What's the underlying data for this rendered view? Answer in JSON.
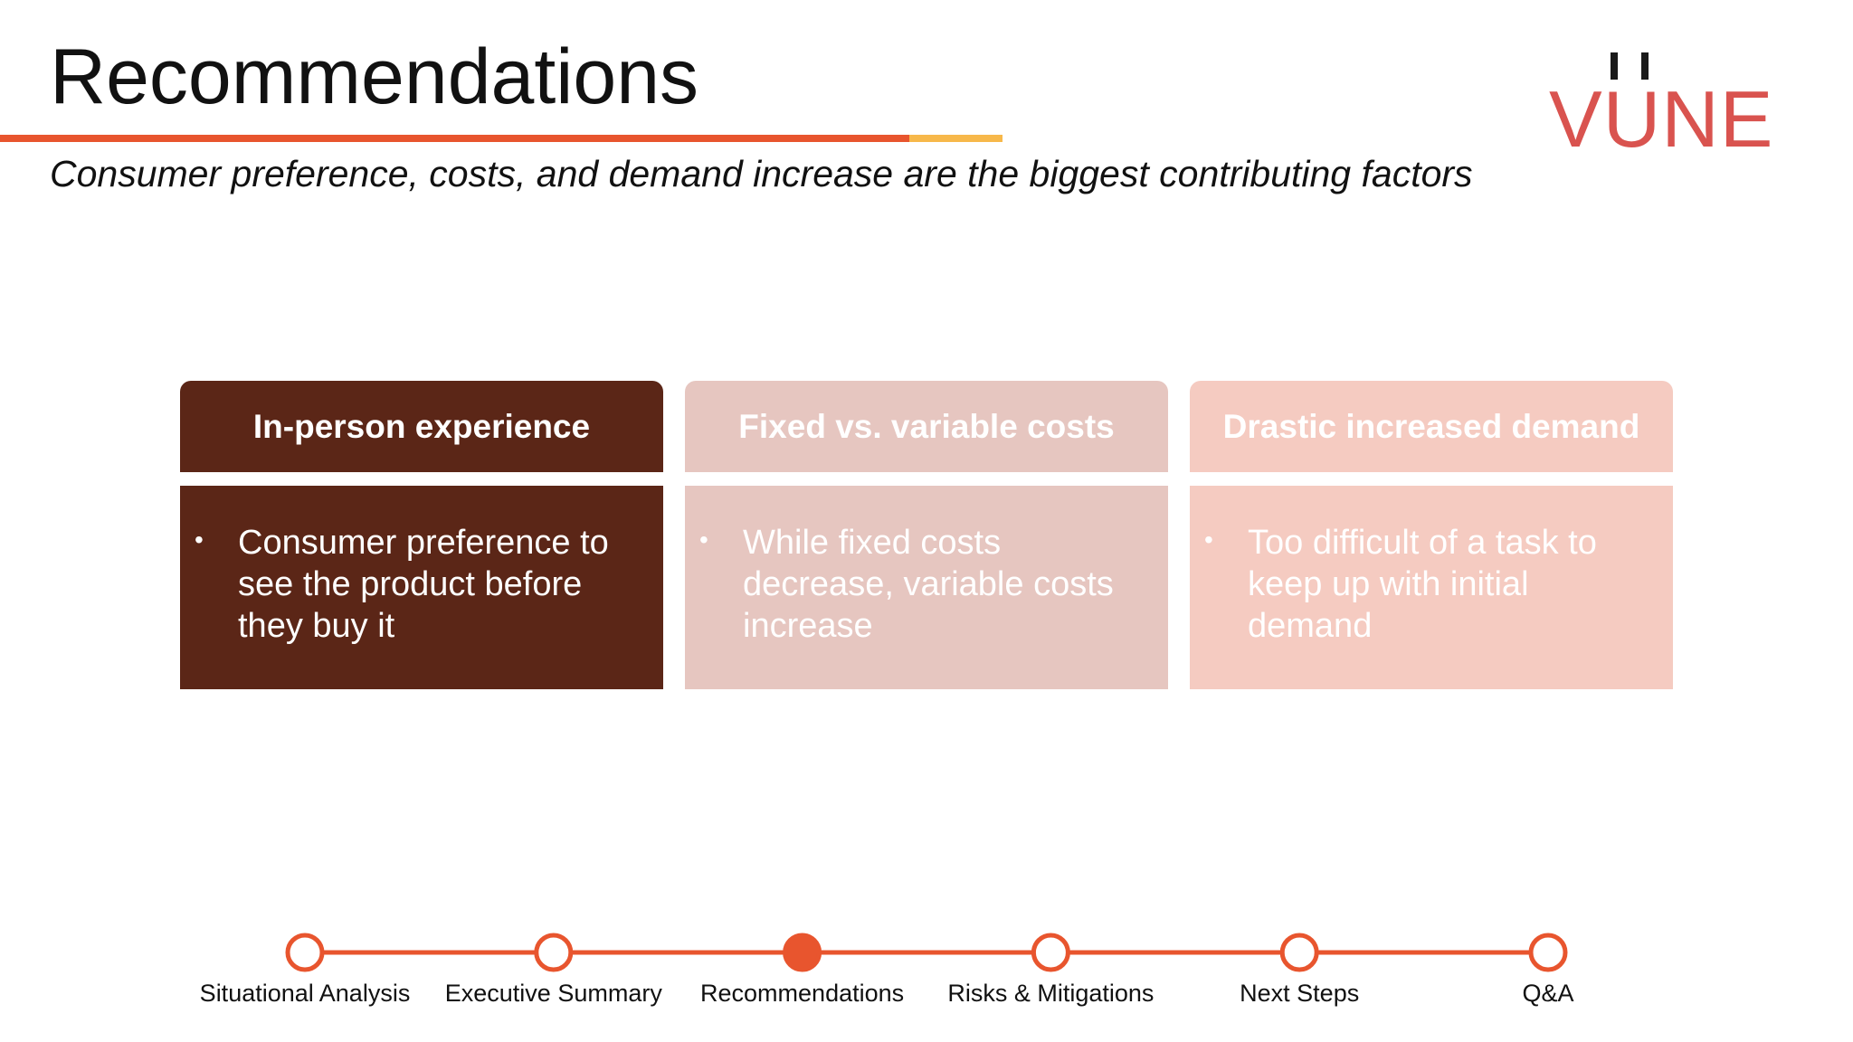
{
  "header": {
    "title": "Recommendations",
    "subtitle": "Consumer preference, costs, and demand increase are the biggest contributing factors"
  },
  "logo": {
    "text": "VUNE",
    "color": "#d9534f"
  },
  "colors": {
    "title_rule": "#e8552e",
    "title_rule_accent": "#f7b84a",
    "timeline": "#e8552e"
  },
  "cards": [
    {
      "header": "In-person experience",
      "bullet": "•",
      "text": "Consumer preference to see the product before they buy it",
      "bg": "#5b2617",
      "fg": "#ffffff"
    },
    {
      "header": "Fixed vs. variable costs",
      "bullet": "•",
      "text": "While fixed costs decrease, variable costs increase",
      "bg": "#e6c6c0",
      "fg": "#ffffff"
    },
    {
      "header": "Drastic increased demand",
      "bullet": "•",
      "text": "Too difficult of a task to keep up with initial demand",
      "bg": "#f5cbc1",
      "fg": "#ffffff"
    }
  ],
  "timeline": {
    "steps": [
      {
        "label": "Situational Analysis",
        "active": false
      },
      {
        "label": "Executive Summary",
        "active": false
      },
      {
        "label": "Recommendations",
        "active": true
      },
      {
        "label": "Risks & Mitigations",
        "active": false
      },
      {
        "label": "Next Steps",
        "active": false
      },
      {
        "label": "Q&A",
        "active": false
      }
    ]
  }
}
